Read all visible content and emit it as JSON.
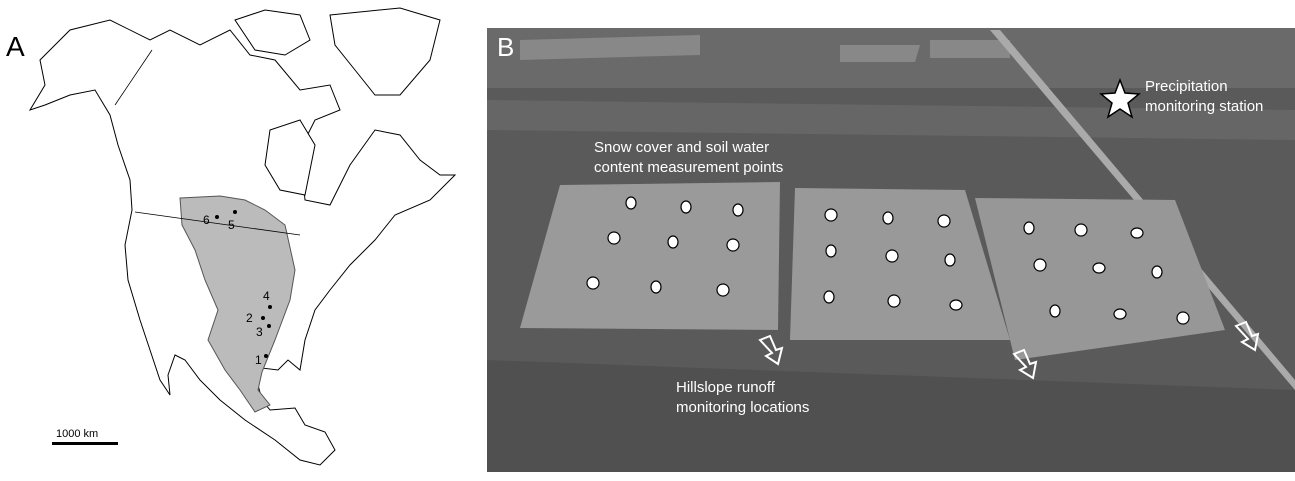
{
  "panel_a": {
    "label": "A",
    "sites": [
      "1",
      "2",
      "3",
      "4",
      "5",
      "6"
    ],
    "scale_bar": "1000 km"
  },
  "panel_b": {
    "label": "B",
    "precipitation_station": [
      "Precipitation",
      "monitoring station"
    ],
    "measurement_points": [
      "Snow cover and soil water",
      "content measurement points"
    ],
    "runoff_locations": [
      "Hillslope runoff",
      "monitoring locations"
    ]
  }
}
